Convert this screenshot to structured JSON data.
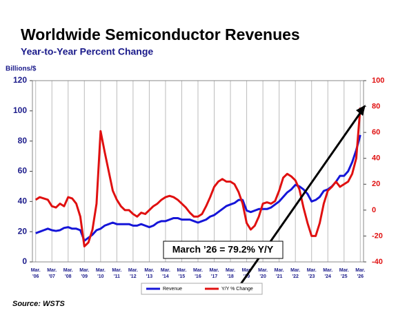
{
  "chart_data": {
    "type": "line",
    "title": "Worldwide Semiconductor Revenues",
    "subtitle": "Year-to-Year Percent Change",
    "y_label": "Billions/$",
    "source": "Source: WSTS",
    "annotation": "March ’26 = 79.2% Y/Y",
    "x": [
      2006,
      2006.25,
      2006.5,
      2006.75,
      2007,
      2007.25,
      2007.5,
      2007.75,
      2008,
      2008.25,
      2008.5,
      2008.75,
      2009,
      2009.25,
      2009.5,
      2009.75,
      2010,
      2010.25,
      2010.5,
      2010.75,
      2011,
      2011.25,
      2011.5,
      2011.75,
      2012,
      2012.25,
      2012.5,
      2012.75,
      2013,
      2013.25,
      2013.5,
      2013.75,
      2014,
      2014.25,
      2014.5,
      2014.75,
      2015,
      2015.25,
      2015.5,
      2015.75,
      2016,
      2016.25,
      2016.5,
      2016.75,
      2017,
      2017.25,
      2017.5,
      2017.75,
      2018,
      2018.25,
      2018.5,
      2018.75,
      2019,
      2019.25,
      2019.5,
      2019.75,
      2020,
      2020.25,
      2020.5,
      2020.75,
      2021,
      2021.25,
      2021.5,
      2021.75,
      2022,
      2022.25,
      2022.5,
      2022.75,
      2023,
      2023.25,
      2023.5,
      2023.75,
      2024,
      2024.25,
      2024.5,
      2024.75,
      2025,
      2025.25,
      2025.5,
      2025.75,
      2026
    ],
    "series": [
      {
        "name": "Revenue",
        "color": "#1515d8",
        "axis": "y",
        "values": [
          19,
          20,
          21,
          22,
          21,
          20.5,
          21,
          22.5,
          23,
          22,
          22,
          21,
          14,
          16,
          18,
          21,
          22,
          24,
          25,
          26,
          25,
          25,
          25,
          25,
          24,
          24,
          25,
          24,
          23,
          24,
          26,
          27,
          27,
          28,
          29,
          29,
          28,
          28,
          28,
          27,
          26,
          27,
          28,
          30,
          31,
          33,
          35,
          37,
          38,
          39,
          41,
          41,
          34,
          33,
          34,
          35,
          35,
          35,
          36,
          38,
          40,
          43,
          46,
          48,
          51,
          50,
          48,
          45,
          40,
          41,
          43,
          47,
          48,
          50,
          53,
          57,
          57,
          60,
          66,
          74,
          84
        ]
      },
      {
        "name": "Y/Y % Change",
        "color": "#e01010",
        "axis": "y2",
        "values": [
          8,
          10,
          9,
          8,
          3,
          2,
          5,
          3,
          10,
          9,
          5,
          -5,
          -28,
          -25,
          -15,
          5,
          61,
          45,
          30,
          15,
          8,
          3,
          0,
          0,
          -3,
          -5,
          -2,
          -3,
          0,
          3,
          5,
          8,
          10,
          11,
          10,
          8,
          5,
          2,
          -2,
          -5,
          -5,
          -3,
          3,
          10,
          18,
          22,
          24,
          22,
          22,
          20,
          14,
          5,
          -10,
          -15,
          -12,
          -5,
          5,
          6,
          5,
          7,
          15,
          25,
          28,
          26,
          23,
          16,
          2,
          -10,
          -20,
          -20,
          -10,
          5,
          15,
          18,
          22,
          18,
          20,
          22,
          28,
          40,
          79.2
        ]
      }
    ],
    "xlim": [
      2005.8,
      2026.2
    ],
    "xticks": [
      {
        "value": 2006,
        "label": "Mar. '06"
      },
      {
        "value": 2007,
        "label": "Mar. '07"
      },
      {
        "value": 2008,
        "label": "Mar. '08"
      },
      {
        "value": 2009,
        "label": "Mar. '09"
      },
      {
        "value": 2010,
        "label": "Mar. '10"
      },
      {
        "value": 2011,
        "label": "Mar. '11"
      },
      {
        "value": 2012,
        "label": "Mar. '12"
      },
      {
        "value": 2013,
        "label": "Mar. '13"
      },
      {
        "value": 2014,
        "label": "Mar. '14"
      },
      {
        "value": 2015,
        "label": "Mar. '15"
      },
      {
        "value": 2016,
        "label": "Mar. '16"
      },
      {
        "value": 2017,
        "label": "Mar. '17"
      },
      {
        "value": 2018,
        "label": "Mar. '18"
      },
      {
        "value": 2019,
        "label": "Mar. '19"
      },
      {
        "value": 2020,
        "label": "Mar. '20"
      },
      {
        "value": 2021,
        "label": "Mar. '21"
      },
      {
        "value": 2022,
        "label": "Mar. '22"
      },
      {
        "value": 2023,
        "label": "Mar. '23"
      },
      {
        "value": 2024,
        "label": "Mar. '24"
      },
      {
        "value": 2025,
        "label": "Mar. '25"
      },
      {
        "value": 2026,
        "label": "Mar. '26"
      }
    ],
    "ylim": [
      0,
      120
    ],
    "yticks": [
      0,
      20,
      40,
      60,
      80,
      100,
      120
    ],
    "y2lim": [
      -40,
      100
    ],
    "y2ticks": [
      -40,
      -20,
      0,
      20,
      40,
      60,
      80,
      100
    ],
    "grid": true
  }
}
